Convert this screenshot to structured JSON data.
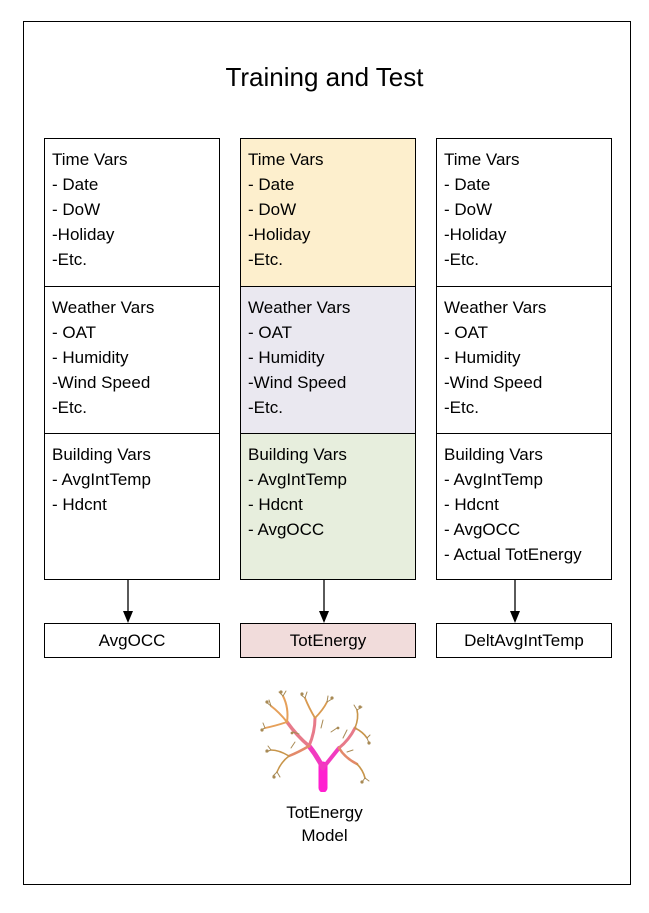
{
  "title": "Training and Test",
  "columns": [
    {
      "sections": [
        {
          "header": "Time Vars",
          "items": [
            "- Date",
            "- DoW",
            "-Holiday",
            "-Etc."
          ]
        },
        {
          "header": "Weather Vars",
          "items": [
            "- OAT",
            "- Humidity",
            "-Wind Speed",
            "-Etc."
          ]
        },
        {
          "header": "Building Vars",
          "items": [
            "- AvgIntTemp",
            "- Hdcnt"
          ]
        }
      ],
      "output": "AvgOCC"
    },
    {
      "sections": [
        {
          "header": "Time Vars",
          "items": [
            "- Date",
            "- DoW",
            "-Holiday",
            "-Etc."
          ],
          "color": "#fdefcd"
        },
        {
          "header": "Weather Vars",
          "items": [
            "- OAT",
            "- Humidity",
            "-Wind Speed",
            "-Etc."
          ],
          "color": "#eae8f0"
        },
        {
          "header": "Building Vars",
          "items": [
            "- AvgIntTemp",
            "- Hdcnt",
            "- AvgOCC"
          ],
          "color": "#e7eedd"
        }
      ],
      "output": "TotEnergy",
      "output_color": "#f1dcdb"
    },
    {
      "sections": [
        {
          "header": "Time Vars",
          "items": [
            "- Date",
            "- DoW",
            "-Holiday",
            "-Etc."
          ]
        },
        {
          "header": "Weather Vars",
          "items": [
            "- OAT",
            "- Humidity",
            "-Wind Speed",
            "-Etc."
          ]
        },
        {
          "header": "Building Vars",
          "items": [
            "- AvgIntTemp",
            "- Hdcnt",
            "- AvgOCC",
            "- Actual TotEnergy"
          ]
        }
      ],
      "output": "DeltAvgIntTemp"
    }
  ],
  "model": {
    "label_line1": "TotEnergy",
    "label_line2": "Model",
    "icon": "decision-tree-icon"
  }
}
